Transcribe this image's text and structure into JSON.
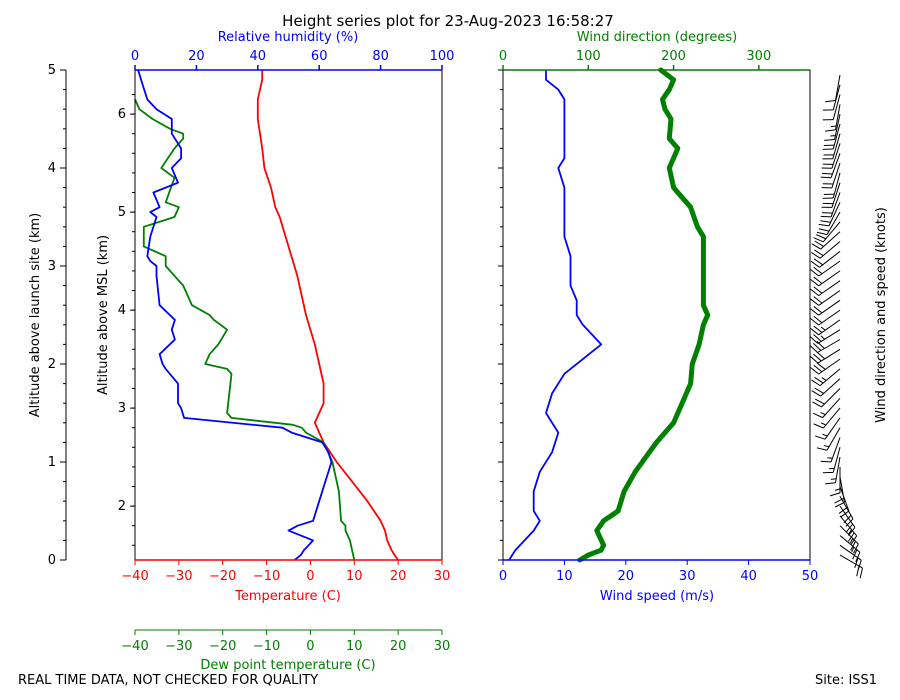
{
  "title": "Height series plot for 23-Aug-2023 16:58:27",
  "footer": {
    "quality_note": "REAL TIME DATA, NOT CHECKED FOR QUALITY",
    "site": "Site: ISS1"
  },
  "colors": {
    "temperature": "#ff0000",
    "dewpoint": "#008000",
    "humidity": "#0000ff",
    "wind_speed": "#0000ff",
    "wind_direction": "#008000",
    "barbs": "#000000"
  },
  "chart_data": [
    {
      "type": "line",
      "name": "thermo-panel",
      "x_axes": {
        "temperature": {
          "label": "Temperature (C)",
          "range": [
            -40,
            30
          ],
          "ticks": [
            "−40",
            "−30",
            "−20",
            "−10",
            "0",
            "10",
            "20",
            "30"
          ]
        },
        "dewpoint": {
          "label": "Dew point temperature (C)",
          "range": [
            -40,
            30
          ],
          "ticks": [
            "−40",
            "−30",
            "−20",
            "−10",
            "0",
            "10",
            "20",
            "30"
          ]
        },
        "humidity": {
          "label": "Relative humidity (%)",
          "range": [
            0,
            100
          ],
          "ticks": [
            "0",
            "20",
            "40",
            "60",
            "80",
            "100"
          ]
        }
      },
      "y_axes": {
        "agl": {
          "label": "Altitude above launch site (km)",
          "range": [
            0,
            5
          ],
          "ticks": [
            "0",
            "1",
            "2",
            "3",
            "4",
            "5"
          ]
        },
        "msl": {
          "label": "Altitude above MSL (km)",
          "range": [
            1.45,
            6.45
          ],
          "ticks": [
            "2",
            "3",
            "4",
            "5",
            "6"
          ]
        }
      },
      "series": [
        {
          "name": "Temperature",
          "unit": "C",
          "points": [
            [
              20,
              0
            ],
            [
              19.2,
              0.05
            ],
            [
              18.5,
              0.1
            ],
            [
              17.5,
              0.2
            ],
            [
              17,
              0.3
            ],
            [
              16,
              0.4
            ],
            [
              13,
              0.6
            ],
            [
              9.5,
              0.8
            ],
            [
              6,
              1
            ],
            [
              3,
              1.2
            ],
            [
              1,
              1.4
            ],
            [
              3,
              1.6
            ],
            [
              3,
              1.8
            ],
            [
              2,
              2
            ],
            [
              1,
              2.2
            ],
            [
              0,
              2.35
            ],
            [
              -1,
              2.5
            ],
            [
              -3,
              2.9
            ],
            [
              -5,
              3.2
            ],
            [
              -6,
              3.35
            ],
            [
              -7,
              3.5
            ],
            [
              -8,
              3.6
            ],
            [
              -9,
              3.8
            ],
            [
              -10.5,
              4.0
            ],
            [
              -11,
              4.2
            ],
            [
              -12,
              4.5
            ],
            [
              -12,
              4.7
            ],
            [
              -11,
              4.9
            ],
            [
              -11,
              5.0
            ]
          ]
        },
        {
          "name": "Dew point",
          "unit": "C",
          "points": [
            [
              10,
              0
            ],
            [
              9.5,
              0.1
            ],
            [
              9,
              0.2
            ],
            [
              8,
              0.3
            ],
            [
              8,
              0.35
            ],
            [
              7,
              0.4
            ],
            [
              6.5,
              0.7
            ],
            [
              5,
              1
            ],
            [
              4,
              1.1
            ],
            [
              3,
              1.2
            ],
            [
              -1,
              1.3
            ],
            [
              -2,
              1.35
            ],
            [
              -4,
              1.38
            ],
            [
              -18,
              1.45
            ],
            [
              -19,
              1.5
            ],
            [
              -18,
              1.9
            ],
            [
              -19,
              1.95
            ],
            [
              -24,
              2.0
            ],
            [
              -23,
              2.1
            ],
            [
              -21,
              2.2
            ],
            [
              -19,
              2.35
            ],
            [
              -22,
              2.45
            ],
            [
              -23,
              2.5
            ],
            [
              -27,
              2.6
            ],
            [
              -29,
              2.8
            ],
            [
              -33,
              3.0
            ],
            [
              -33,
              3.1
            ],
            [
              -38,
              3.2
            ],
            [
              -38,
              3.4
            ],
            [
              -31,
              3.5
            ],
            [
              -30,
              3.6
            ],
            [
              -33,
              3.65
            ],
            [
              -31,
              3.9
            ],
            [
              -34,
              4.0
            ],
            [
              -31,
              4.2
            ],
            [
              -29,
              4.3
            ],
            [
              -29,
              4.35
            ],
            [
              -32,
              4.4
            ],
            [
              -36,
              4.5
            ],
            [
              -39,
              4.6
            ],
            [
              -40,
              4.7
            ]
          ]
        },
        {
          "name": "Relative humidity",
          "unit": "%",
          "points": [
            [
              52,
              0
            ],
            [
              54,
              0.05
            ],
            [
              55,
              0.1
            ],
            [
              58,
              0.2
            ],
            [
              50,
              0.3
            ],
            [
              53,
              0.35
            ],
            [
              58,
              0.4
            ],
            [
              60,
              0.6
            ],
            [
              62,
              0.8
            ],
            [
              64,
              1
            ],
            [
              63,
              1.1
            ],
            [
              61,
              1.2
            ],
            [
              51,
              1.3
            ],
            [
              48,
              1.35
            ],
            [
              16,
              1.45
            ],
            [
              15,
              1.55
            ],
            [
              14,
              1.6
            ],
            [
              14,
              1.8
            ],
            [
              10,
              1.95
            ],
            [
              9,
              2.0
            ],
            [
              8,
              2.1
            ],
            [
              13,
              2.25
            ],
            [
              12,
              2.35
            ],
            [
              13,
              2.45
            ],
            [
              8,
              2.6
            ],
            [
              7,
              2.9
            ],
            [
              7,
              3.0
            ],
            [
              5,
              3.05
            ],
            [
              4,
              3.1
            ],
            [
              5,
              3.3
            ],
            [
              7,
              3.5
            ],
            [
              5,
              3.55
            ],
            [
              8,
              3.6
            ],
            [
              6,
              3.75
            ],
            [
              14,
              3.85
            ],
            [
              12,
              4.0
            ],
            [
              15,
              4.1
            ],
            [
              15,
              4.2
            ],
            [
              12,
              4.35
            ],
            [
              12,
              4.5
            ],
            [
              7,
              4.6
            ],
            [
              4,
              4.7
            ],
            [
              3,
              4.8
            ],
            [
              2,
              4.9
            ],
            [
              1,
              5.0
            ]
          ]
        }
      ]
    },
    {
      "type": "line",
      "name": "wind-panel",
      "x_axes": {
        "wind_speed": {
          "label": "Wind speed (m/s)",
          "range": [
            0,
            50
          ],
          "ticks": [
            "0",
            "10",
            "20",
            "30",
            "40",
            "50"
          ]
        },
        "wind_direction": {
          "label": "Wind direction (degrees)",
          "range": [
            0,
            360
          ],
          "ticks": [
            "0",
            "100",
            "200",
            "300"
          ]
        }
      },
      "y_axis": {
        "label": "Altitude above launch site (km)",
        "range": [
          0,
          5
        ]
      },
      "barb_label": "Wind direction and speed (knots)",
      "series": [
        {
          "name": "Wind speed",
          "unit": "m/s",
          "points": [
            [
              1,
              0
            ],
            [
              2,
              0.1
            ],
            [
              5,
              0.3
            ],
            [
              6,
              0.4
            ],
            [
              5,
              0.5
            ],
            [
              5,
              0.7
            ],
            [
              6,
              0.9
            ],
            [
              8,
              1.1
            ],
            [
              9,
              1.3
            ],
            [
              7,
              1.5
            ],
            [
              8,
              1.7
            ],
            [
              10,
              1.9
            ],
            [
              14,
              2.1
            ],
            [
              16,
              2.2
            ],
            [
              13,
              2.4
            ],
            [
              12,
              2.5
            ],
            [
              12,
              2.65
            ],
            [
              11,
              2.8
            ],
            [
              11,
              3.0
            ],
            [
              11,
              3.1
            ],
            [
              10,
              3.3
            ],
            [
              10,
              3.6
            ],
            [
              10,
              3.8
            ],
            [
              9,
              4.0
            ],
            [
              10,
              4.1
            ],
            [
              10,
              4.5
            ],
            [
              10,
              4.7
            ],
            [
              9,
              4.8
            ],
            [
              7,
              4.9
            ],
            [
              7,
              5.0
            ]
          ]
        },
        {
          "name": "Wind direction",
          "unit": "degrees",
          "points": [
            [
              90,
              0
            ],
            [
              100,
              0.05
            ],
            [
              115,
              0.1
            ],
            [
              118,
              0.15
            ],
            [
              110,
              0.3
            ],
            [
              118,
              0.4
            ],
            [
              135,
              0.5
            ],
            [
              142,
              0.7
            ],
            [
              155,
              0.9
            ],
            [
              180,
              1.2
            ],
            [
              200,
              1.4
            ],
            [
              210,
              1.6
            ],
            [
              220,
              1.8
            ],
            [
              222,
              2.0
            ],
            [
              230,
              2.2
            ],
            [
              235,
              2.4
            ],
            [
              240,
              2.5
            ],
            [
              235,
              2.6
            ],
            [
              235,
              3.0
            ],
            [
              235,
              3.3
            ],
            [
              228,
              3.4
            ],
            [
              220,
              3.6
            ],
            [
              200,
              3.8
            ],
            [
              195,
              4.0
            ],
            [
              205,
              4.2
            ],
            [
              195,
              4.3
            ],
            [
              197,
              4.5
            ],
            [
              190,
              4.6
            ],
            [
              187,
              4.7
            ],
            [
              195,
              4.8
            ],
            [
              200,
              4.9
            ],
            [
              185,
              5.0
            ]
          ]
        }
      ],
      "barbs": [
        [
          0.05,
          120,
          22
        ],
        [
          0.15,
          125,
          24
        ],
        [
          0.25,
          130,
          26
        ],
        [
          0.35,
          135,
          26
        ],
        [
          0.45,
          140,
          26
        ],
        [
          0.55,
          145,
          24
        ],
        [
          0.65,
          150,
          24
        ],
        [
          0.75,
          160,
          22
        ],
        [
          0.85,
          170,
          20
        ],
        [
          0.95,
          180,
          18
        ],
        [
          1.05,
          190,
          18
        ],
        [
          1.15,
          195,
          16
        ],
        [
          1.25,
          200,
          16
        ],
        [
          1.35,
          210,
          18
        ],
        [
          1.45,
          215,
          18
        ],
        [
          1.55,
          220,
          18
        ],
        [
          1.65,
          222,
          18
        ],
        [
          1.75,
          225,
          20
        ],
        [
          1.85,
          228,
          22
        ],
        [
          1.95,
          230,
          26
        ],
        [
          2.05,
          235,
          30
        ],
        [
          2.15,
          238,
          32
        ],
        [
          2.25,
          240,
          30
        ],
        [
          2.35,
          238,
          28
        ],
        [
          2.45,
          235,
          26
        ],
        [
          2.55,
          235,
          24
        ],
        [
          2.65,
          235,
          22
        ],
        [
          2.75,
          235,
          22
        ],
        [
          2.85,
          235,
          22
        ],
        [
          2.95,
          235,
          22
        ],
        [
          3.05,
          235,
          22
        ],
        [
          3.15,
          232,
          22
        ],
        [
          3.25,
          230,
          20
        ],
        [
          3.35,
          228,
          20
        ],
        [
          3.45,
          220,
          20
        ],
        [
          3.55,
          210,
          20
        ],
        [
          3.65,
          205,
          20
        ],
        [
          3.75,
          200,
          20
        ],
        [
          3.85,
          198,
          20
        ],
        [
          3.95,
          195,
          20
        ],
        [
          4.05,
          198,
          20
        ],
        [
          4.15,
          200,
          20
        ],
        [
          4.25,
          198,
          20
        ],
        [
          4.35,
          196,
          20
        ],
        [
          4.45,
          195,
          20
        ],
        [
          4.55,
          192,
          18
        ],
        [
          4.65,
          190,
          16
        ],
        [
          4.75,
          195,
          14
        ],
        [
          4.85,
          195,
          12
        ],
        [
          4.95,
          190,
          12
        ]
      ]
    }
  ]
}
